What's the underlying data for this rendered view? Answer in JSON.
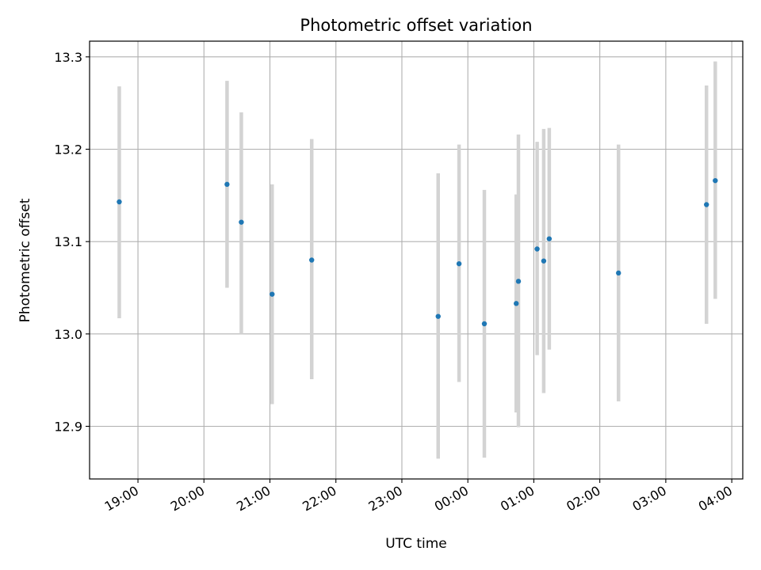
{
  "chart_data": {
    "type": "scatter",
    "title": "Photometric offset variation",
    "xlabel": "UTC time",
    "ylabel": "Photometric offset",
    "grid": true,
    "ylim": [
      12.843,
      13.317
    ],
    "xlim": [
      "18:16",
      "04:10"
    ],
    "x_axis_ticks": [
      "19:00",
      "20:00",
      "21:00",
      "22:00",
      "23:00",
      "00:00",
      "01:00",
      "02:00",
      "03:00",
      "04:00"
    ],
    "y_axis_ticks": [
      "12.9",
      "13.0",
      "13.1",
      "13.2",
      "13.3"
    ],
    "marker_color": "#1f77b4",
    "errorbar_color": "#d3d3d3",
    "x_format": "HH:MM (UTC, spanning midnight)",
    "points": [
      {
        "time": "18:43",
        "y": 13.143,
        "ylow": 13.017,
        "yhigh": 13.268
      },
      {
        "time": "20:21",
        "y": 13.162,
        "ylow": 13.05,
        "yhigh": 13.274
      },
      {
        "time": "20:34",
        "y": 13.121,
        "ylow": 13.0,
        "yhigh": 13.24
      },
      {
        "time": "21:02",
        "y": 13.043,
        "ylow": 12.924,
        "yhigh": 13.162
      },
      {
        "time": "21:38",
        "y": 13.08,
        "ylow": 12.951,
        "yhigh": 13.211
      },
      {
        "time": "23:33",
        "y": 13.019,
        "ylow": 12.865,
        "yhigh": 13.174
      },
      {
        "time": "23:52",
        "y": 13.076,
        "ylow": 12.948,
        "yhigh": 13.205
      },
      {
        "time": "00:15",
        "y": 13.011,
        "ylow": 12.866,
        "yhigh": 13.156
      },
      {
        "time": "00:44",
        "y": 13.033,
        "ylow": 12.915,
        "yhigh": 13.151
      },
      {
        "time": "00:46",
        "y": 13.057,
        "ylow": 12.899,
        "yhigh": 13.216
      },
      {
        "time": "01:03",
        "y": 13.092,
        "ylow": 12.977,
        "yhigh": 13.208
      },
      {
        "time": "01:09",
        "y": 13.079,
        "ylow": 12.936,
        "yhigh": 13.222
      },
      {
        "time": "01:14",
        "y": 13.103,
        "ylow": 12.983,
        "yhigh": 13.223
      },
      {
        "time": "02:17",
        "y": 13.066,
        "ylow": 12.927,
        "yhigh": 13.205
      },
      {
        "time": "03:37",
        "y": 13.14,
        "ylow": 13.011,
        "yhigh": 13.269
      },
      {
        "time": "03:45",
        "y": 13.166,
        "ylow": 13.038,
        "yhigh": 13.295
      }
    ]
  }
}
